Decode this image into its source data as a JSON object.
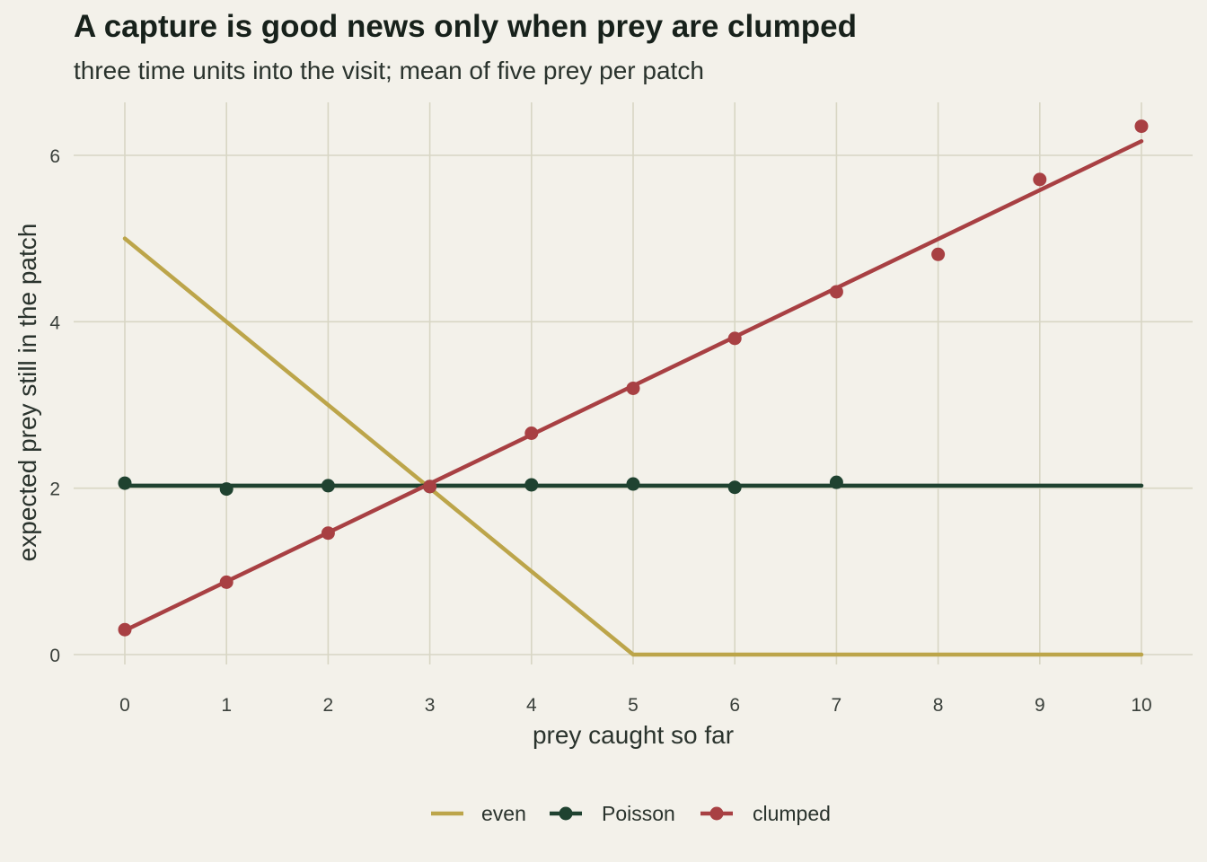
{
  "chart_data": {
    "type": "line",
    "title": "A capture is good news only when prey are clumped",
    "subtitle": "three time units into the visit; mean of five prey per patch",
    "xlabel": "prey caught so far",
    "ylabel": "expected prey still in the patch",
    "xlim": [
      -0.5,
      10.5
    ],
    "ylim": [
      0,
      6.6
    ],
    "x_ticks": [
      0,
      1,
      2,
      3,
      4,
      5,
      6,
      7,
      8,
      9,
      10
    ],
    "y_ticks": [
      0,
      2,
      4,
      6
    ],
    "grid": true,
    "legend_position": "bottom",
    "series": [
      {
        "name": "even",
        "color": "#bca54a",
        "line": {
          "x": [
            0,
            1,
            2,
            3,
            4,
            5,
            6,
            7,
            8,
            9,
            10
          ],
          "y": [
            5,
            4,
            3,
            2,
            1,
            0,
            0,
            0,
            0,
            0,
            0
          ]
        },
        "points": []
      },
      {
        "name": "Poisson",
        "color": "#1f4230",
        "line": {
          "x": [
            0,
            10
          ],
          "y": [
            2.03,
            2.03
          ]
        },
        "points": {
          "x": [
            0,
            1,
            2,
            3,
            4,
            5,
            6,
            7
          ],
          "y": [
            2.06,
            1.99,
            2.03,
            2.02,
            2.04,
            2.05,
            2.01,
            2.07
          ]
        }
      },
      {
        "name": "clumped",
        "color": "#a84043",
        "line": {
          "x": [
            0,
            10
          ],
          "y": [
            0.29,
            6.17
          ]
        },
        "points": {
          "x": [
            0,
            1,
            2,
            3,
            4,
            5,
            6,
            7,
            8,
            9,
            10
          ],
          "y": [
            0.3,
            0.87,
            1.46,
            2.02,
            2.66,
            3.2,
            3.8,
            4.36,
            4.81,
            5.71,
            6.35
          ]
        }
      }
    ]
  }
}
